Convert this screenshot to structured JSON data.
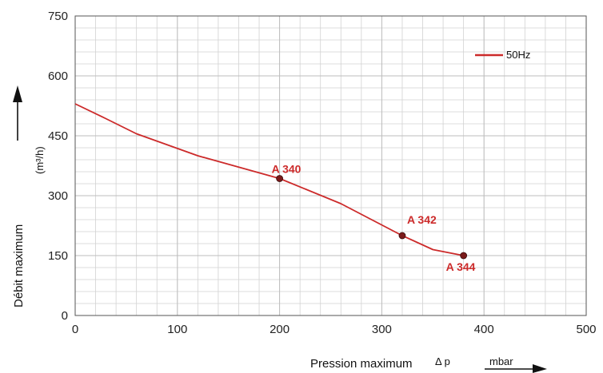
{
  "chart_data": {
    "type": "line",
    "title": "",
    "xlabel": "Pression maximum",
    "xlabel_symbol": "Δ p",
    "xunit": "mbar",
    "ylabel": "Débit maximum",
    "yunit": "(m³/h)",
    "xlim": [
      0,
      500
    ],
    "ylim": [
      0,
      750
    ],
    "x_ticks": [
      0,
      100,
      200,
      300,
      400,
      500
    ],
    "y_ticks": [
      0,
      150,
      300,
      450,
      600,
      750
    ],
    "grid": true,
    "legend_position": "top-right",
    "colors": {
      "series": "#cc2a2a",
      "grid": "#d2d2d2",
      "axis": "#555555",
      "marker": "#7a1a1a"
    },
    "series": [
      {
        "name": "50Hz",
        "x": [
          0,
          30,
          60,
          120,
          200,
          260,
          320,
          350,
          380
        ],
        "y": [
          530,
          493,
          455,
          400,
          343,
          280,
          200,
          165,
          150
        ]
      }
    ],
    "annotations": [
      {
        "label": "A 340",
        "x": 200,
        "y": 343
      },
      {
        "label": "A 342",
        "x": 320,
        "y": 200
      },
      {
        "label": "A 344",
        "x": 380,
        "y": 150
      }
    ]
  }
}
